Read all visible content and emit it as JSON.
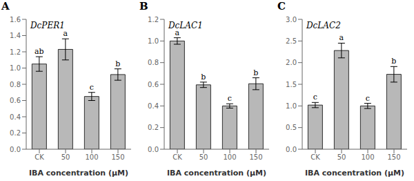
{
  "chart_data": [
    {
      "type": "bar",
      "title": "A",
      "subtitle": "DcPER1",
      "xlabel": "IBA concentration (μM)",
      "categories": [
        "CK",
        "50",
        "100",
        "150"
      ],
      "values": [
        1.05,
        1.23,
        0.65,
        0.92
      ],
      "errors": [
        0.09,
        0.13,
        0.05,
        0.07
      ],
      "annotations": [
        "ab",
        "a",
        "c",
        "b"
      ],
      "color": "#b8b8b8",
      "ylim": [
        0,
        1.6
      ],
      "yticks": [
        {
          "value": 0,
          "label": "0.0"
        },
        0.2,
        0.4,
        0.6,
        0.8,
        {
          "value": 1,
          "label": "1.0"
        },
        1.2,
        1.4,
        1.6
      ],
      "grid": false
    },
    {
      "type": "bar",
      "title": "B",
      "subtitle": "DcLAC1",
      "xlabel": "IBA concentration (μM)",
      "categories": [
        "CK",
        "50",
        "100",
        "150"
      ],
      "values": [
        1.0,
        0.595,
        0.4,
        0.605
      ],
      "errors": [
        0.03,
        0.025,
        0.02,
        0.055
      ],
      "annotations": [
        "a",
        "b",
        "c",
        "b"
      ],
      "color": "#b8b8b8",
      "ylim": [
        0,
        1.2
      ],
      "yticks": [
        {
          "value": 0,
          "label": "0.0"
        },
        0.2,
        0.4,
        0.6,
        0.8,
        {
          "value": 1,
          "label": "1.0"
        },
        1.2
      ],
      "grid": false
    },
    {
      "type": "bar",
      "title": "C",
      "subtitle": "DcLAC2",
      "xlabel": "IBA concentration (μM)",
      "categories": [
        "CK",
        "50",
        "100",
        "150"
      ],
      "values": [
        1.02,
        2.28,
        1.0,
        1.73
      ],
      "errors": [
        0.06,
        0.17,
        0.06,
        0.18
      ],
      "annotations": [
        "c",
        "a",
        "c",
        "b"
      ],
      "color": "#b8b8b8",
      "ylim": [
        0,
        3.0
      ],
      "yticks": [
        {
          "value": 0,
          "label": "0.0"
        },
        0.5,
        {
          "value": 1,
          "label": "1.0"
        },
        1.5,
        {
          "value": 2,
          "label": "2.0"
        },
        2.5,
        {
          "value": 3,
          "label": "3.0"
        }
      ],
      "grid": false
    }
  ]
}
